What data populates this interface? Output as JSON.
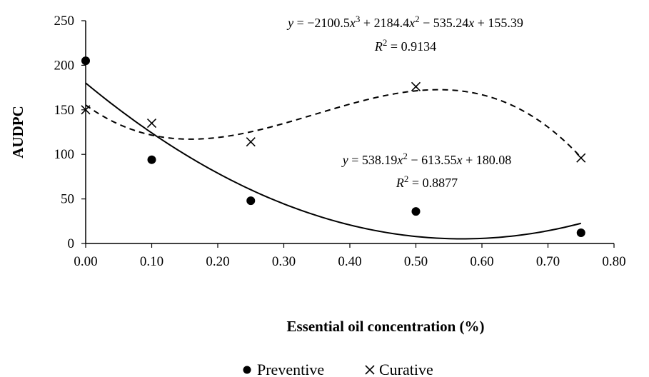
{
  "chart_data": {
    "type": "scatter",
    "xlabel": "Essential oil concentration (%)",
    "ylabel": "AUDPC",
    "xlim": [
      0,
      0.8
    ],
    "ylim": [
      0,
      250
    ],
    "x_ticks": [
      "0.00",
      "0.10",
      "0.20",
      "0.30",
      "0.40",
      "0.50",
      "0.60",
      "0.70",
      "0.80"
    ],
    "y_ticks": [
      "0",
      "50",
      "100",
      "150",
      "200",
      "250"
    ],
    "grid": false,
    "legend_position": "bottom",
    "series": [
      {
        "name": "Preventive",
        "marker": "filled-circle",
        "points": [
          {
            "x": 0.0,
            "y": 205
          },
          {
            "x": 0.1,
            "y": 94
          },
          {
            "x": 0.25,
            "y": 48
          },
          {
            "x": 0.5,
            "y": 36
          },
          {
            "x": 0.75,
            "y": 12
          }
        ],
        "trendline": {
          "style": "solid",
          "coefficients": [
            180.08,
            -613.55,
            538.19
          ],
          "equation_parts": [
            "y",
            " = 538.19",
            "x",
            "2",
            " − 613.55",
            "x",
            " + 180.08"
          ],
          "r2_parts": [
            "R",
            "2",
            " = 0.8877"
          ]
        }
      },
      {
        "name": "Curative",
        "marker": "cross",
        "points": [
          {
            "x": 0.0,
            "y": 150
          },
          {
            "x": 0.1,
            "y": 135
          },
          {
            "x": 0.25,
            "y": 114
          },
          {
            "x": 0.5,
            "y": 176
          },
          {
            "x": 0.75,
            "y": 96
          }
        ],
        "trendline": {
          "style": "dashed",
          "coefficients": [
            155.39,
            -535.24,
            2184.4,
            -2100.5
          ],
          "equation_parts": [
            "y",
            " = −2100.5",
            "x",
            "3",
            " + 2184.4",
            "x",
            "2",
            " − 535.24",
            "x",
            " + 155.39"
          ],
          "r2_parts": [
            "R",
            "2",
            " = 0.9134"
          ]
        }
      }
    ]
  }
}
